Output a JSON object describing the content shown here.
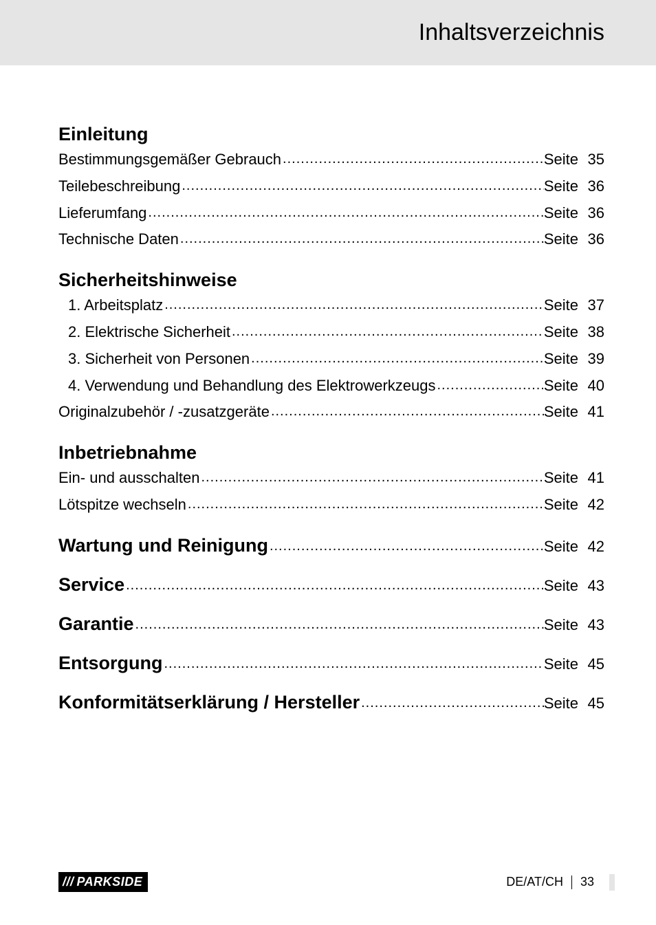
{
  "header": {
    "title": "Inhaltsverzeichnis"
  },
  "page_label": "Seite",
  "sections": [
    {
      "title": "Einleitung",
      "entries": [
        {
          "indent": 0,
          "label": "Bestimmungsgemäßer Gebrauch",
          "page": "35"
        },
        {
          "indent": 0,
          "label": "Teilebeschreibung",
          "page": "36"
        },
        {
          "indent": 0,
          "label": "Lieferumfang",
          "page": "36"
        },
        {
          "indent": 0,
          "label": "Technische Daten",
          "page": "36"
        }
      ]
    },
    {
      "title": "Sicherheitshinweise",
      "entries": [
        {
          "indent": 1,
          "label": "1. Arbeitsplatz",
          "page": "37"
        },
        {
          "indent": 1,
          "label": "2. Elektrische Sicherheit",
          "page": "38"
        },
        {
          "indent": 1,
          "label": "3. Sicherheit von Personen",
          "page": "39"
        },
        {
          "indent": 1,
          "label": "4. Verwendung und Behandlung des Elektrowerkzeugs",
          "page": "40"
        },
        {
          "indent": 0,
          "label": "Originalzubehör / -zusatzgeräte",
          "page": "41"
        }
      ]
    },
    {
      "title": "Inbetriebnahme",
      "entries": [
        {
          "indent": 0,
          "label": "Ein- und ausschalten",
          "page": "41"
        },
        {
          "indent": 0,
          "label": "Lötspitze wechseln",
          "page": "42"
        }
      ]
    }
  ],
  "standalone": [
    {
      "label": "Wartung und Reinigung",
      "page": "42"
    },
    {
      "label": "Service",
      "page": "43"
    },
    {
      "label": "Garantie",
      "page": "43"
    },
    {
      "label": "Entsorgung",
      "page": "45"
    },
    {
      "label": "Konformitätserklärung / Hersteller",
      "page": "45"
    }
  ],
  "footer": {
    "logo_stripes": "///",
    "logo_text": "PARKSIDE",
    "locale": "DE/AT/CH",
    "page_number": "33"
  },
  "styles": {
    "header_bg": "#e5e5e5",
    "body_bg": "#ffffff",
    "text_color": "#000000",
    "title_fontsize": 27,
    "entry_fontsize": 22,
    "header_fontsize": 34,
    "logo_bg": "#000000",
    "logo_fg": "#ffffff"
  }
}
